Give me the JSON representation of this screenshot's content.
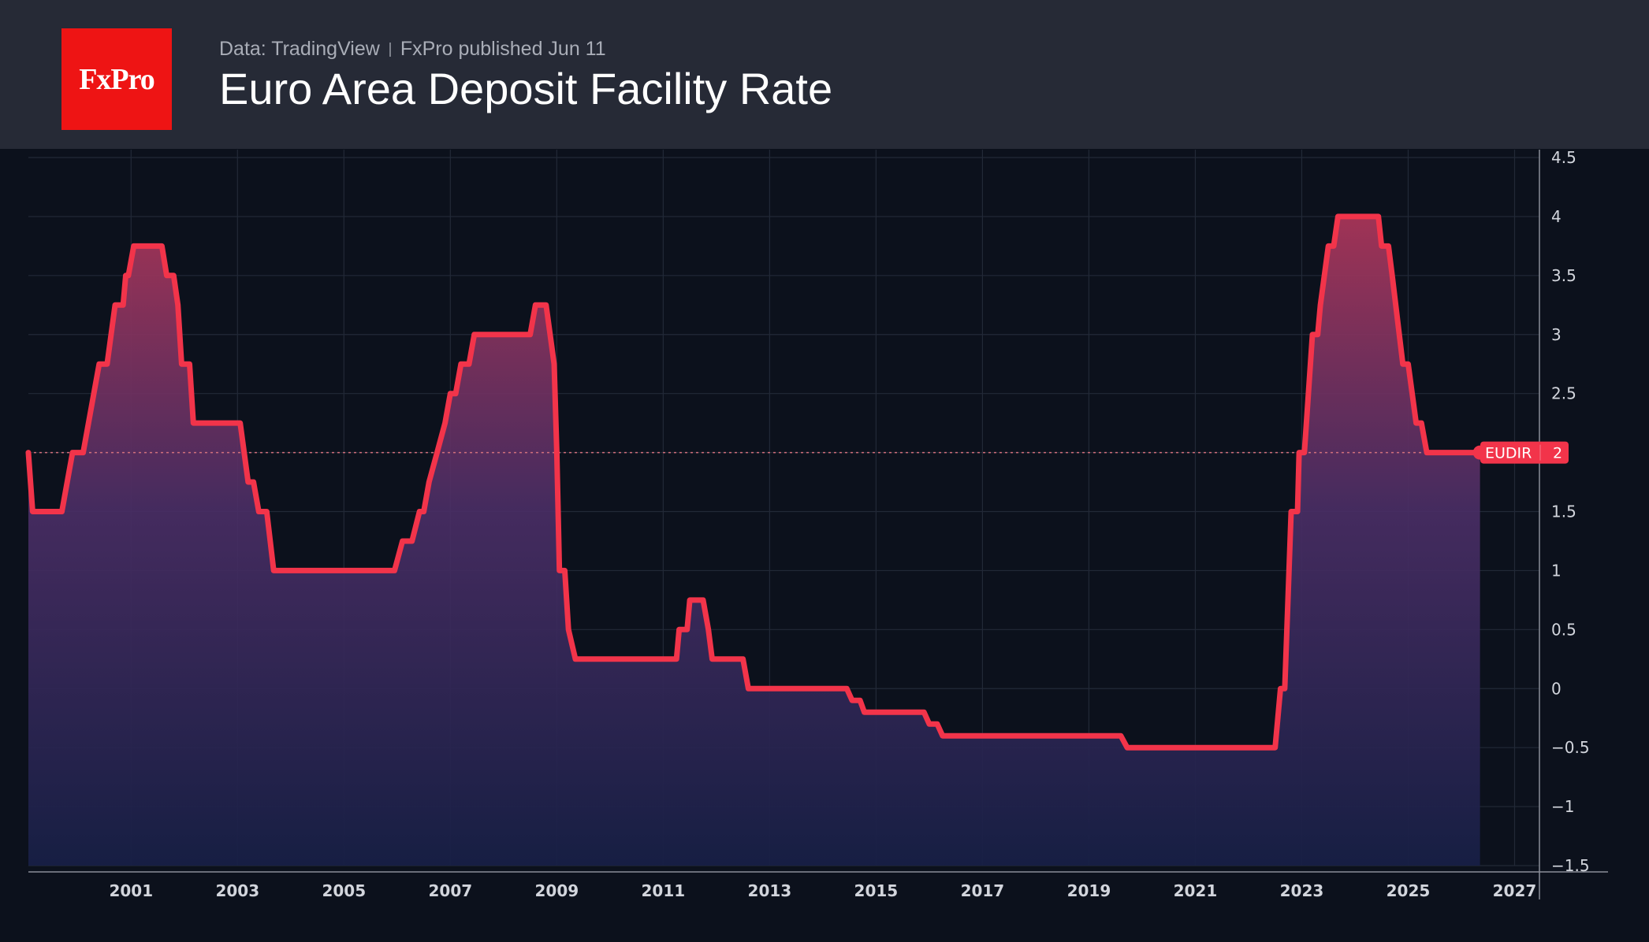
{
  "header": {
    "logo_text": "FxPro",
    "data_source": "Data: TradingView",
    "published": "FxPro published Jun 11",
    "title": "Euro Area Deposit Facility Rate"
  },
  "colors": {
    "header_bg": "#262a36",
    "plot_bg": "#0c111c",
    "line": "#f2344a",
    "logo": "#ee1414"
  },
  "chart_data": {
    "type": "area",
    "series": [
      {
        "name": "EUDIR",
        "step": true,
        "points": [
          [
            1999.07,
            2.0
          ],
          [
            1999.15,
            1.5
          ],
          [
            1999.7,
            1.5
          ],
          [
            1999.9,
            2.0
          ],
          [
            2000.1,
            2.0
          ],
          [
            2000.4,
            2.75
          ],
          [
            2000.55,
            2.75
          ],
          [
            2000.7,
            3.25
          ],
          [
            2000.85,
            3.25
          ],
          [
            2000.9,
            3.5
          ],
          [
            2000.95,
            3.5
          ],
          [
            2001.05,
            3.75
          ],
          [
            2001.3,
            3.75
          ],
          [
            2001.58,
            3.75
          ],
          [
            2001.67,
            3.5
          ],
          [
            2001.8,
            3.5
          ],
          [
            2001.88,
            3.25
          ],
          [
            2001.95,
            2.75
          ],
          [
            2002.1,
            2.75
          ],
          [
            2002.17,
            2.25
          ],
          [
            2002.5,
            2.25
          ],
          [
            2002.9,
            2.25
          ],
          [
            2002.95,
            2.25
          ],
          [
            2003.05,
            2.25
          ],
          [
            2003.2,
            1.75
          ],
          [
            2003.3,
            1.75
          ],
          [
            2003.4,
            1.5
          ],
          [
            2003.55,
            1.5
          ],
          [
            2003.68,
            1.0
          ],
          [
            2004.0,
            1.0
          ],
          [
            2005.0,
            1.0
          ],
          [
            2005.95,
            1.0
          ],
          [
            2006.1,
            1.25
          ],
          [
            2006.28,
            1.25
          ],
          [
            2006.42,
            1.5
          ],
          [
            2006.5,
            1.5
          ],
          [
            2006.6,
            1.75
          ],
          [
            2006.75,
            2.0
          ],
          [
            2006.9,
            2.25
          ],
          [
            2007.0,
            2.5
          ],
          [
            2007.1,
            2.5
          ],
          [
            2007.2,
            2.75
          ],
          [
            2007.35,
            2.75
          ],
          [
            2007.45,
            3.0
          ],
          [
            2008.0,
            3.0
          ],
          [
            2008.5,
            3.0
          ],
          [
            2008.6,
            3.25
          ],
          [
            2008.8,
            3.25
          ],
          [
            2008.95,
            2.75
          ],
          [
            2009.0,
            2.0
          ],
          [
            2009.05,
            1.0
          ],
          [
            2009.15,
            1.0
          ],
          [
            2009.22,
            0.5
          ],
          [
            2009.35,
            0.25
          ],
          [
            2010.0,
            0.25
          ],
          [
            2011.0,
            0.25
          ],
          [
            2011.25,
            0.25
          ],
          [
            2011.3,
            0.5
          ],
          [
            2011.45,
            0.5
          ],
          [
            2011.5,
            0.75
          ],
          [
            2011.75,
            0.75
          ],
          [
            2011.85,
            0.5
          ],
          [
            2011.92,
            0.25
          ],
          [
            2012.2,
            0.25
          ],
          [
            2012.5,
            0.25
          ],
          [
            2012.6,
            0.0
          ],
          [
            2013.0,
            0.0
          ],
          [
            2014.0,
            0.0
          ],
          [
            2014.45,
            0.0
          ],
          [
            2014.55,
            -0.1
          ],
          [
            2014.7,
            -0.1
          ],
          [
            2014.78,
            -0.2
          ],
          [
            2015.5,
            -0.2
          ],
          [
            2015.9,
            -0.2
          ],
          [
            2016.0,
            -0.3
          ],
          [
            2016.15,
            -0.3
          ],
          [
            2016.25,
            -0.4
          ],
          [
            2017.0,
            -0.4
          ],
          [
            2018.0,
            -0.4
          ],
          [
            2019.0,
            -0.4
          ],
          [
            2019.6,
            -0.4
          ],
          [
            2019.72,
            -0.5
          ],
          [
            2020.0,
            -0.5
          ],
          [
            2021.0,
            -0.5
          ],
          [
            2022.0,
            -0.5
          ],
          [
            2022.5,
            -0.5
          ],
          [
            2022.6,
            0.0
          ],
          [
            2022.68,
            0.0
          ],
          [
            2022.8,
            1.5
          ],
          [
            2022.92,
            1.5
          ],
          [
            2022.95,
            2.0
          ],
          [
            2023.05,
            2.0
          ],
          [
            2023.2,
            3.0
          ],
          [
            2023.3,
            3.0
          ],
          [
            2023.35,
            3.25
          ],
          [
            2023.5,
            3.75
          ],
          [
            2023.6,
            3.75
          ],
          [
            2023.68,
            4.0
          ],
          [
            2024.0,
            4.0
          ],
          [
            2024.3,
            4.0
          ],
          [
            2024.44,
            4.0
          ],
          [
            2024.5,
            3.75
          ],
          [
            2024.63,
            3.75
          ],
          [
            2024.7,
            3.5
          ],
          [
            2024.9,
            2.75
          ],
          [
            2025.0,
            2.75
          ],
          [
            2025.15,
            2.25
          ],
          [
            2025.25,
            2.25
          ],
          [
            2025.35,
            2.0
          ],
          [
            2026.0,
            2.0
          ],
          [
            2026.35,
            2.0
          ]
        ]
      }
    ],
    "x_ticks": [
      "2001",
      "2003",
      "2005",
      "2007",
      "2009",
      "2011",
      "2013",
      "2015",
      "2017",
      "2019",
      "2021",
      "2023",
      "2025",
      "2027"
    ],
    "y_ticks": [
      "4.5",
      "4",
      "3.5",
      "3",
      "2.5",
      "2",
      "1.5",
      "1",
      "0.5",
      "0",
      "−0.5",
      "−1",
      "−1.5"
    ],
    "xlim": [
      1999.07,
      2028.8
    ],
    "ylim": [
      -1.5,
      4.5
    ],
    "grid": true,
    "y_axis_side": "right",
    "last_value_label": {
      "name": "EUDIR",
      "value": "2"
    }
  }
}
